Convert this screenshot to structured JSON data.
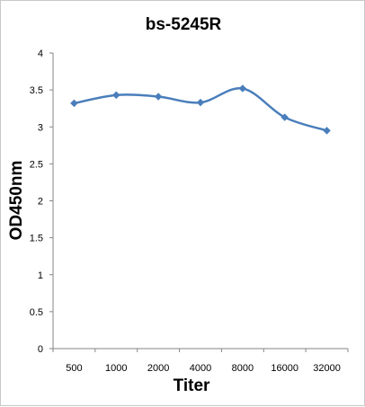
{
  "chart_data": {
    "type": "line",
    "title": "bs-5245R",
    "xlabel": "Titer",
    "ylabel": "OD450nm",
    "categories": [
      "500",
      "1000",
      "2000",
      "4000",
      "8000",
      "16000",
      "32000"
    ],
    "series": [
      {
        "values": [
          3.32,
          3.43,
          3.41,
          3.33,
          3.52,
          3.13,
          2.95
        ],
        "color": "#4a7ebb"
      }
    ],
    "ylim": [
      0,
      4
    ],
    "yticks": [
      "0",
      "0.5",
      "1",
      "1.5",
      "2",
      "2.5",
      "3",
      "3.5",
      "4"
    ],
    "grid": false,
    "legend": "none",
    "marker": "diamond",
    "smooth": true
  }
}
